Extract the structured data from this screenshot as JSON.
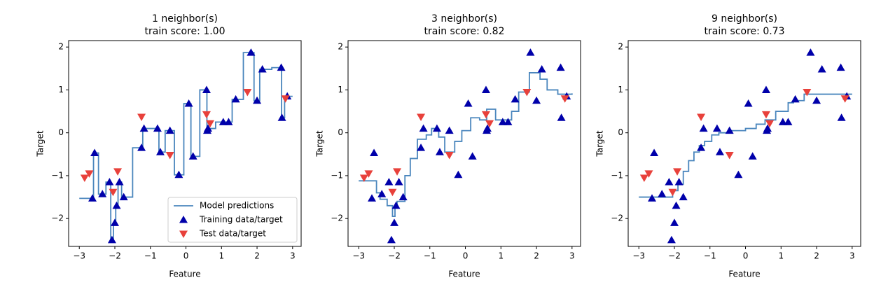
{
  "chart_data": [
    {
      "type": "line",
      "title": "1 neighbor(s)",
      "subtitle": "train score: 1.00",
      "x_label": "Feature",
      "y_label": "Target",
      "xlim": [
        -3.3,
        3.24
      ],
      "ylim": [
        -2.65,
        2.15
      ],
      "xticks": [
        {
          "value": -3,
          "label": "−3"
        },
        {
          "value": -2,
          "label": "−2"
        },
        {
          "value": -1,
          "label": "−1"
        },
        0,
        1,
        2,
        3
      ],
      "yticks": [
        {
          "value": -2,
          "label": "−2"
        },
        {
          "value": -1,
          "label": "−1"
        },
        0,
        1,
        2
      ],
      "legend": "lower right",
      "series": [
        {
          "name": "Model predictions",
          "color": "#4a86bd",
          "drawstyle": "steps-post",
          "x": [
            -3,
            -2.6,
            -2.46,
            -2.25,
            -2.115,
            -2.04,
            -1.975,
            -1.91,
            -1.81,
            -1.5,
            -1.215,
            -0.99,
            -0.76,
            -0.585,
            -0.325,
            -0.06,
            0.14,
            0.39,
            0.59,
            0.61,
            0.835,
            1.125,
            1.3,
            1.615,
            1.915,
            2.075,
            2.415,
            2.69,
            2.775,
            3
          ],
          "values": [
            -1.53,
            -0.47,
            -1.43,
            -1.15,
            -2.5,
            -2.1,
            -1.7,
            -1.15,
            -1.5,
            -0.35,
            0.1,
            0.1,
            -0.45,
            0.05,
            -0.98,
            0.68,
            -0.55,
            1.0,
            0.05,
            0.1,
            0.25,
            0.25,
            0.78,
            1.87,
            0.75,
            1.48,
            1.52,
            0.35,
            0.85,
            0.85
          ]
        },
        {
          "name": "Training data/target",
          "color": "#0000aa",
          "marker": "^",
          "x": [
            -2.63,
            -2.57,
            -2.35,
            -2.15,
            -2.08,
            -2.0,
            -1.95,
            -1.87,
            -1.75,
            -1.25,
            -1.18,
            -0.8,
            -0.72,
            -0.45,
            -0.2,
            0.08,
            0.2,
            0.58,
            0.6,
            0.62,
            1.05,
            1.2,
            1.4,
            1.83,
            2.0,
            2.15,
            2.68,
            2.7,
            2.85
          ],
          "values": [
            -1.53,
            -0.47,
            -1.43,
            -1.15,
            -2.5,
            -2.1,
            -1.7,
            -1.15,
            -1.5,
            -0.35,
            0.1,
            0.1,
            -0.45,
            0.05,
            -0.98,
            0.68,
            -0.55,
            1.0,
            0.05,
            0.1,
            0.25,
            0.25,
            0.78,
            1.87,
            0.75,
            1.48,
            1.52,
            0.35,
            0.85
          ]
        },
        {
          "name": "Test data/target",
          "color": "#e8413b",
          "marker": "v",
          "x": [
            -2.85,
            -2.72,
            -2.05,
            -1.92,
            -1.25,
            -0.45,
            0.58,
            0.68,
            1.73,
            2.8
          ],
          "values": [
            -1.05,
            -0.95,
            -1.38,
            -0.9,
            0.37,
            -0.52,
            0.43,
            0.22,
            0.95,
            0.8
          ]
        }
      ]
    },
    {
      "type": "line",
      "title": "3 neighbor(s)",
      "subtitle": "train score: 0.82",
      "x_label": "Feature",
      "y_label": "Target",
      "xlim": [
        -3.3,
        3.24
      ],
      "ylim": [
        -2.65,
        2.15
      ],
      "xticks": [
        {
          "value": -3,
          "label": "−3"
        },
        {
          "value": -2,
          "label": "−2"
        },
        {
          "value": -1,
          "label": "−1"
        },
        0,
        1,
        2,
        3
      ],
      "yticks": [
        {
          "value": -2,
          "label": "−2"
        },
        {
          "value": -1,
          "label": "−1"
        },
        0,
        1,
        2
      ],
      "series": [
        {
          "color": "#4a86bd",
          "drawstyle": "steps-post",
          "x": [
            -3,
            -2.5,
            -2.4,
            -2.2,
            -2.05,
            -1.98,
            -1.92,
            -1.7,
            -1.55,
            -1.35,
            -1.1,
            -0.95,
            -0.75,
            -0.58,
            -0.3,
            -0.1,
            0.15,
            0.4,
            0.6,
            0.85,
            1.3,
            1.5,
            1.8,
            2.1,
            2.3,
            2.6,
            3
          ],
          "values": [
            -1.12,
            -1.4,
            -1.55,
            -1.7,
            -1.95,
            -1.75,
            -1.6,
            -1.0,
            -0.6,
            -0.15,
            -0.05,
            0.1,
            -0.1,
            -0.45,
            -0.2,
            0.05,
            0.35,
            0.3,
            0.55,
            0.3,
            0.5,
            0.95,
            1.4,
            1.25,
            1.0,
            0.9,
            0.92
          ]
        },
        {
          "color": "#0000aa",
          "marker": "^",
          "x": [
            -2.63,
            -2.57,
            -2.35,
            -2.15,
            -2.08,
            -2.0,
            -1.95,
            -1.87,
            -1.75,
            -1.25,
            -1.18,
            -0.8,
            -0.72,
            -0.45,
            -0.2,
            0.08,
            0.2,
            0.58,
            0.6,
            0.62,
            1.05,
            1.2,
            1.4,
            1.83,
            2.0,
            2.15,
            2.68,
            2.7,
            2.85
          ],
          "values": [
            -1.53,
            -0.47,
            -1.43,
            -1.15,
            -2.5,
            -2.1,
            -1.7,
            -1.15,
            -1.5,
            -0.35,
            0.1,
            0.1,
            -0.45,
            0.05,
            -0.98,
            0.68,
            -0.55,
            1.0,
            0.05,
            0.1,
            0.25,
            0.25,
            0.78,
            1.87,
            0.75,
            1.48,
            1.52,
            0.35,
            0.85
          ]
        },
        {
          "color": "#e8413b",
          "marker": "v",
          "x": [
            -2.85,
            -2.72,
            -2.05,
            -1.92,
            -1.25,
            -0.45,
            0.58,
            0.68,
            1.73,
            2.8
          ],
          "values": [
            -1.05,
            -0.95,
            -1.38,
            -0.9,
            0.37,
            -0.52,
            0.43,
            0.22,
            0.95,
            0.8
          ]
        }
      ]
    },
    {
      "type": "line",
      "title": "9 neighbor(s)",
      "subtitle": "train score: 0.73",
      "x_label": "Feature",
      "y_label": "Target",
      "xlim": [
        -3.3,
        3.24
      ],
      "ylim": [
        -2.65,
        2.15
      ],
      "xticks": [
        {
          "value": -3,
          "label": "−3"
        },
        {
          "value": -2,
          "label": "−2"
        },
        {
          "value": -1,
          "label": "−1"
        },
        0,
        1,
        2,
        3
      ],
      "yticks": [
        {
          "value": -2,
          "label": "−2"
        },
        {
          "value": -1,
          "label": "−1"
        },
        0,
        1,
        2
      ],
      "series": [
        {
          "color": "#4a86bd",
          "drawstyle": "steps-post",
          "x": [
            -3,
            -2.05,
            -1.9,
            -1.75,
            -1.6,
            -1.45,
            -1.3,
            -1.15,
            -0.95,
            -0.75,
            -0.45,
            0,
            0.3,
            0.55,
            0.85,
            1.2,
            1.35,
            1.65,
            3
          ],
          "values": [
            -1.5,
            -1.35,
            -1.2,
            -0.9,
            -0.65,
            -0.45,
            -0.3,
            -0.2,
            -0.05,
            0,
            0.05,
            0.1,
            0.2,
            0.3,
            0.5,
            0.7,
            0.75,
            0.9,
            0.9
          ]
        },
        {
          "color": "#0000aa",
          "marker": "^",
          "x": [
            -2.63,
            -2.57,
            -2.35,
            -2.15,
            -2.08,
            -2.0,
            -1.95,
            -1.87,
            -1.75,
            -1.25,
            -1.18,
            -0.8,
            -0.72,
            -0.45,
            -0.2,
            0.08,
            0.2,
            0.58,
            0.6,
            0.62,
            1.05,
            1.2,
            1.4,
            1.83,
            2.0,
            2.15,
            2.68,
            2.7,
            2.85
          ],
          "values": [
            -1.53,
            -0.47,
            -1.43,
            -1.15,
            -2.5,
            -2.1,
            -1.7,
            -1.15,
            -1.5,
            -0.35,
            0.1,
            0.1,
            -0.45,
            0.05,
            -0.98,
            0.68,
            -0.55,
            1.0,
            0.05,
            0.1,
            0.25,
            0.25,
            0.78,
            1.87,
            0.75,
            1.48,
            1.52,
            0.35,
            0.85
          ]
        },
        {
          "color": "#e8413b",
          "marker": "v",
          "x": [
            -2.85,
            -2.72,
            -2.05,
            -1.92,
            -1.25,
            -0.45,
            0.58,
            0.68,
            1.73,
            2.8
          ],
          "values": [
            -1.05,
            -0.95,
            -1.38,
            -0.9,
            0.37,
            -0.52,
            0.43,
            0.22,
            0.95,
            0.8
          ]
        }
      ]
    }
  ]
}
